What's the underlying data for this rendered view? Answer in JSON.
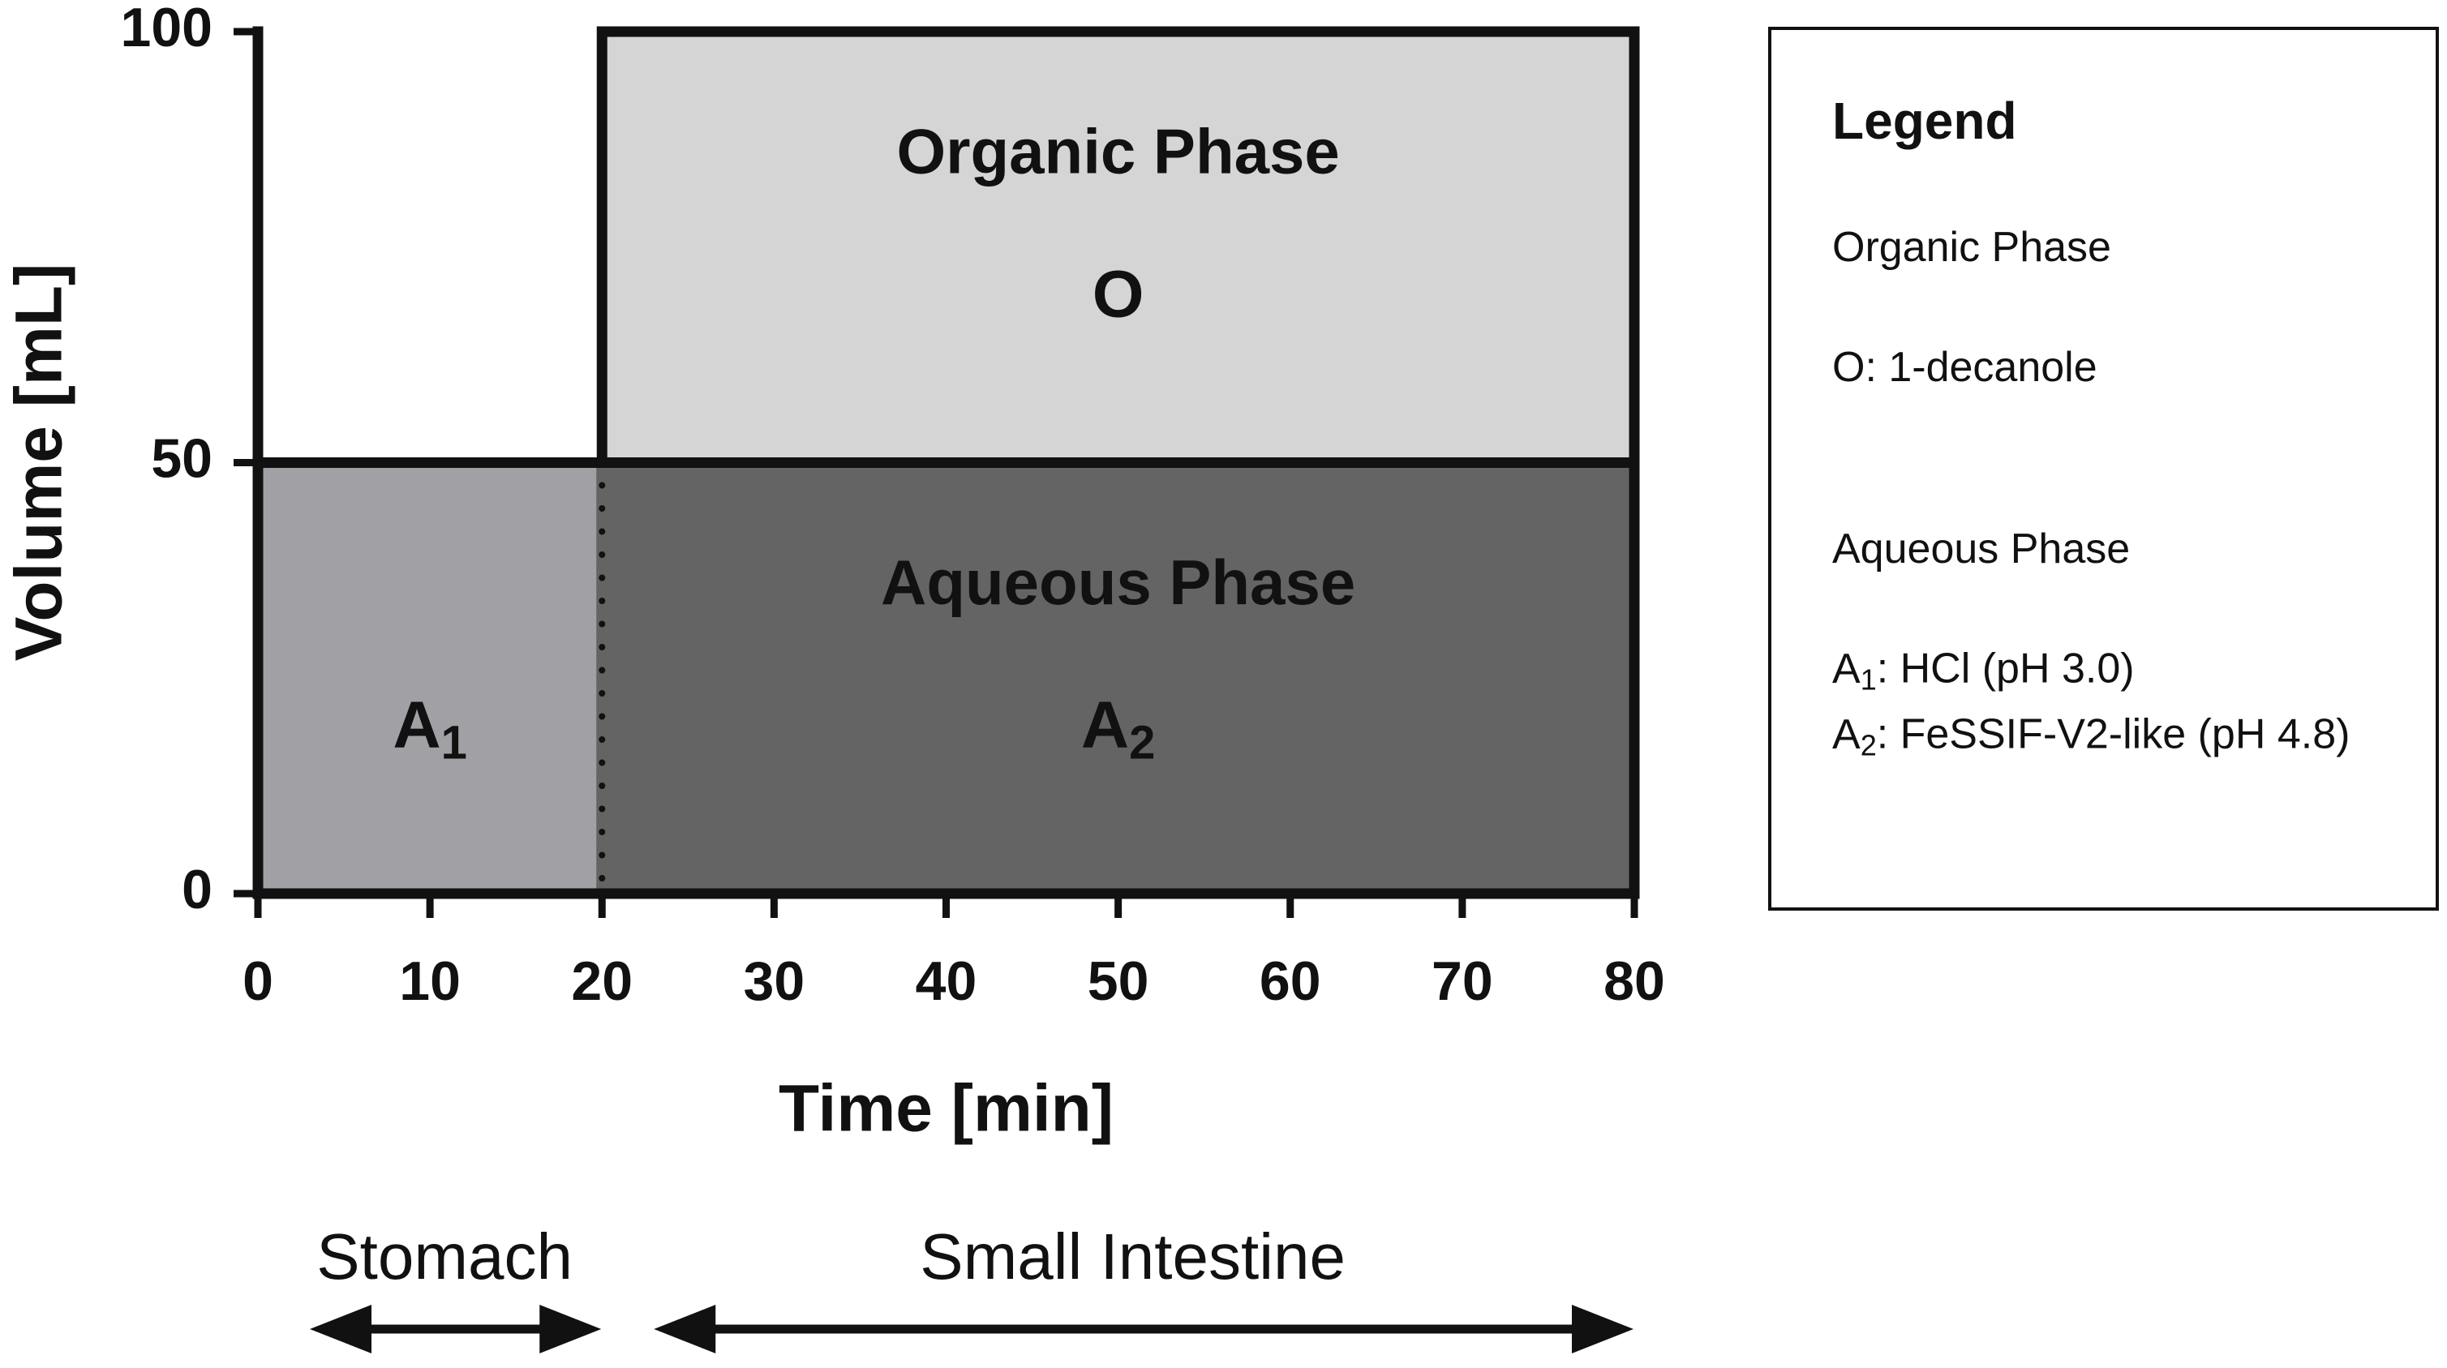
{
  "chart_data": {
    "type": "region",
    "xlabel": "Time [min]",
    "ylabel": "Volume [mL]",
    "xlim": [
      0,
      80
    ],
    "ylim": [
      0,
      100
    ],
    "xticks": [
      0,
      10,
      20,
      30,
      40,
      50,
      60,
      70,
      80
    ],
    "yticks": [
      0,
      50,
      100
    ],
    "regions": [
      {
        "label": "A",
        "sub": "1",
        "x": [
          0,
          20
        ],
        "y": [
          0,
          50
        ],
        "color": "#a1a0a5"
      },
      {
        "title": "Aqueous Phase",
        "label": "A",
        "sub": "2",
        "x": [
          20,
          80
        ],
        "y": [
          0,
          50
        ],
        "color": "#646464"
      },
      {
        "title": "Organic Phase",
        "label": "O",
        "x": [
          20,
          80
        ],
        "y": [
          50,
          100
        ],
        "color": "#d5d5d5"
      }
    ],
    "segments": [
      {
        "name": "Stomach",
        "x": [
          0,
          20
        ]
      },
      {
        "name": "Small Intestine",
        "x": [
          20,
          80
        ]
      }
    ],
    "legend": {
      "title": "Legend",
      "entries": [
        {
          "text": "Organic Phase"
        },
        {
          "text": "O: 1-decanole"
        },
        {
          "text": "Aqueous Phase"
        },
        {
          "symbol": "A",
          "sub": "1",
          "text": ": HCl (pH 3.0)"
        },
        {
          "symbol": "A",
          "sub": "2",
          "text": ": FeSSIF-V2-like (pH 4.8)"
        }
      ]
    }
  }
}
